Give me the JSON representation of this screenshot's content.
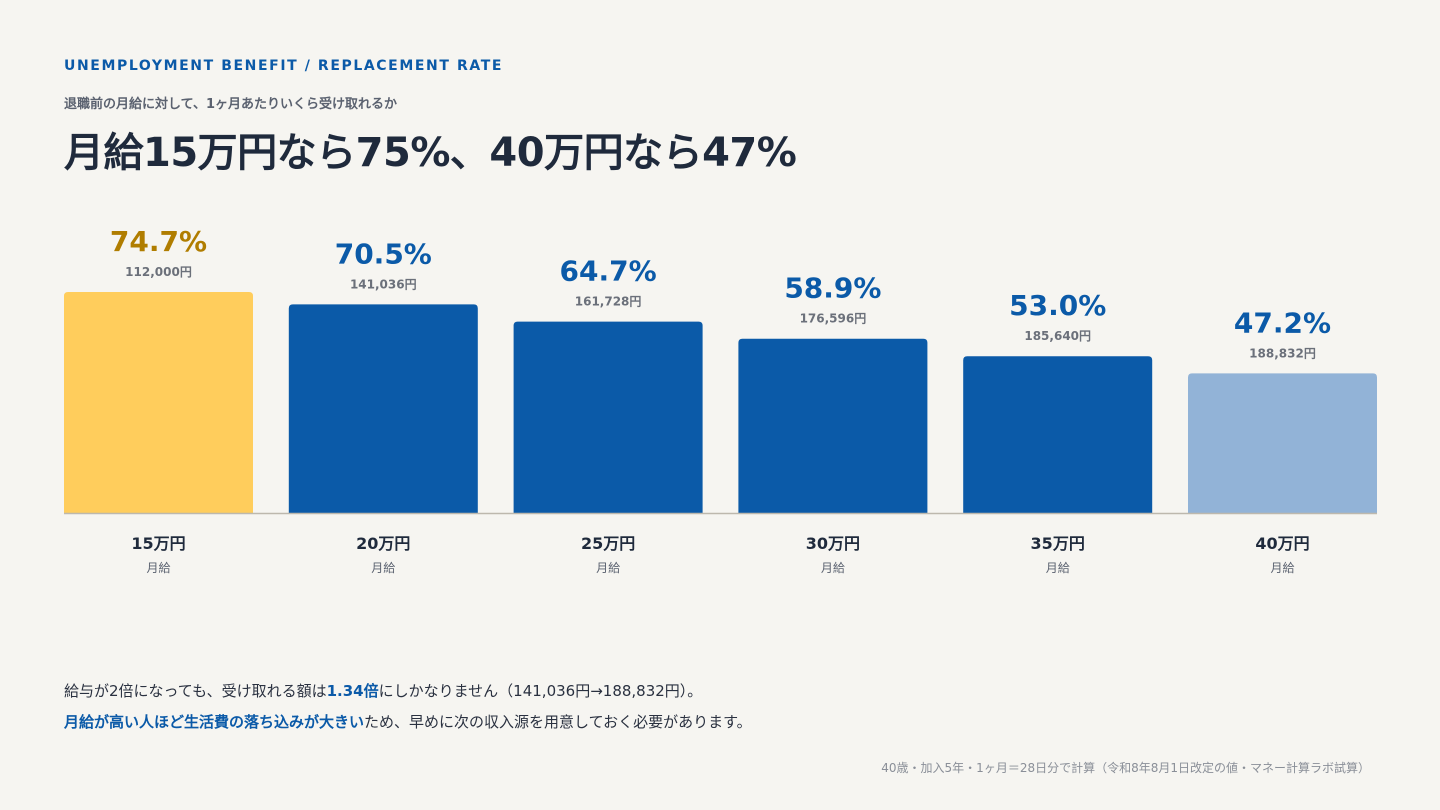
{
  "header": {
    "eyebrow": "UNEMPLOYMENT BENEFIT / REPLACEMENT RATE",
    "subtitle": "退職前の月給に対して、1ヶ月あたりいくら受け取れるか",
    "title": "月給15万円なら75%、40万円なら47%"
  },
  "colors": {
    "highlight": "#ffcd5c",
    "highlight_text": "#b07d00",
    "primary": "#0b5aa8",
    "light": "#92b3d7",
    "amount_text": "#6b707a"
  },
  "chart_data": {
    "type": "bar",
    "categories": [
      "15万円",
      "20万円",
      "25万円",
      "30万円",
      "35万円",
      "40万円"
    ],
    "category_sublabel": "月給",
    "values": [
      74.7,
      70.5,
      64.7,
      58.9,
      53.0,
      47.2
    ],
    "value_labels": [
      "74.7%",
      "70.5%",
      "64.7%",
      "58.9%",
      "53.0%",
      "47.2%"
    ],
    "amount_labels": [
      "112,000円",
      "141,036円",
      "161,728円",
      "176,596円",
      "185,640円",
      "188,832円"
    ],
    "bar_styles": [
      "highlight",
      "primary",
      "primary",
      "primary",
      "primary",
      "light"
    ],
    "ylim": [
      0,
      74.7
    ],
    "grid": false
  },
  "notes": {
    "line1_a": "給与が2倍になっても、受け取れる額は",
    "line1_hl": "1.34倍",
    "line1_b": "にしかなりません（141,036円→188,832円）。",
    "line2_hl": "月給が高い人ほど生活費の落ち込みが大きい",
    "line2_b": "ため、早めに次の収入源を用意しておく必要があります。"
  },
  "footnote": "40歳・加入5年・1ヶ月＝28日分で計算（令和8年8月1日改定の値・マネー計算ラボ試算）"
}
